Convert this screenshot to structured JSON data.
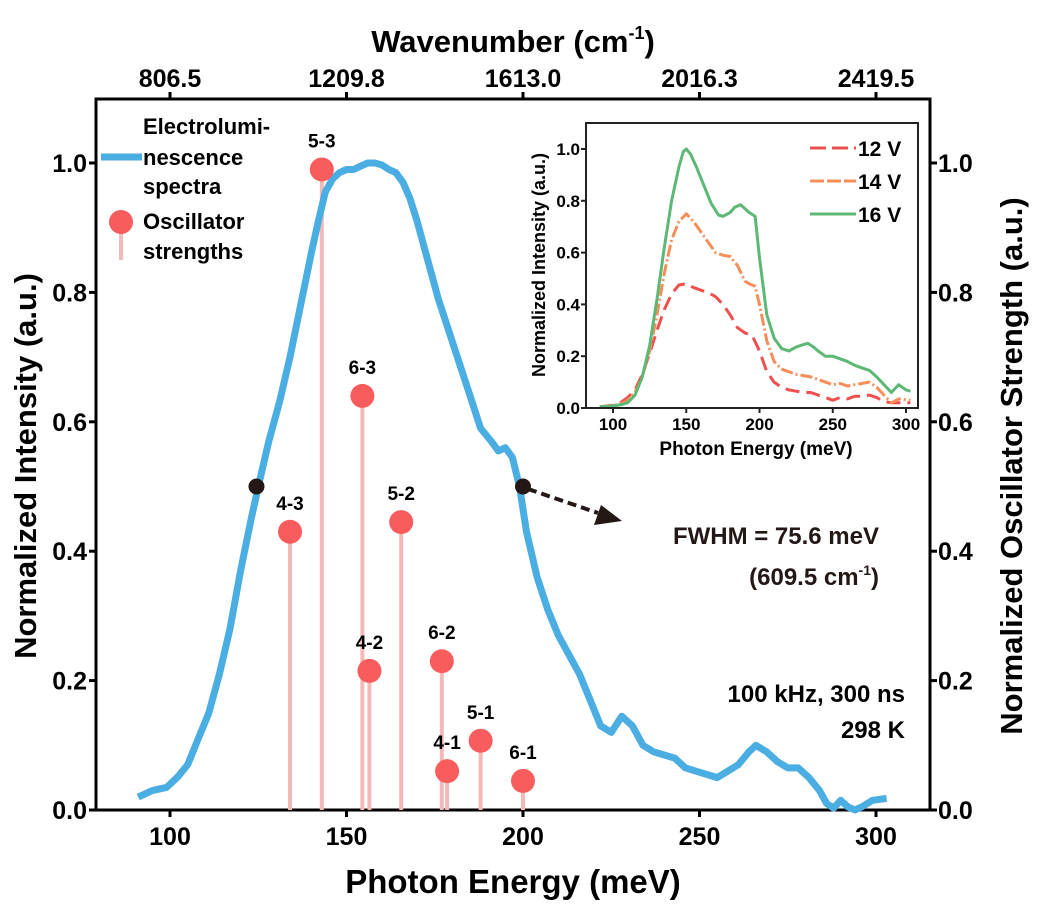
{
  "chart_data": [
    {
      "id": "main",
      "type": "line",
      "title": "",
      "xlabel": "Photon Energy (meV)",
      "ylabel_left": "Normalized Intensity (a.u.)",
      "ylabel_right": "Normalized Oscillator Strength (a.u.)",
      "top_xlabel": "Wavenumber (cm",
      "top_xlabel_sup": "-1",
      "top_xlabel_end": ")",
      "xlim": [
        79,
        315
      ],
      "ylim": [
        0,
        1.1
      ],
      "x_ticks": [
        100,
        150,
        200,
        250,
        300
      ],
      "x_tick_labels": [
        "100",
        "150",
        "200",
        "250",
        "300"
      ],
      "y_ticks": [
        0.0,
        0.2,
        0.4,
        0.6,
        0.8,
        1.0
      ],
      "y_tick_labels": [
        "0.0",
        "0.2",
        "0.4",
        "0.6",
        "0.8",
        "1.0"
      ],
      "top_ticks_meV": [
        100,
        150,
        200,
        250,
        300
      ],
      "top_tick_labels": [
        "806.5",
        "1209.8",
        "1613.0",
        "2016.3",
        "2419.5"
      ],
      "grid": false,
      "legend": {
        "placement": "top-left",
        "entries": [
          {
            "lines": [
              "Electrolumi-",
              "nescence",
              "spectra"
            ],
            "color": "#4BAEE3",
            "kind": "line"
          },
          {
            "lines": [
              "Oscillator",
              "strengths"
            ],
            "color": "#F85C5C",
            "kind": "stem"
          }
        ]
      },
      "series": [
        {
          "name": "Electroluminescence spectra",
          "color": "#4BAEE3",
          "x": [
            91,
            95,
            99,
            102,
            105,
            108,
            111,
            114,
            117,
            120,
            123,
            125,
            128,
            131,
            134,
            137,
            140,
            142,
            144,
            146,
            148,
            150,
            152,
            154,
            156,
            158,
            160,
            162,
            164,
            166,
            168,
            170,
            173,
            176,
            179,
            182,
            185,
            188,
            191,
            193,
            195,
            197,
            199,
            201,
            204,
            207,
            210,
            213,
            216,
            219,
            222,
            225,
            228,
            231,
            234,
            237,
            240,
            243,
            246,
            249,
            252,
            255,
            258,
            261,
            264,
            266,
            269,
            272,
            275,
            278,
            281,
            284,
            286,
            288,
            290,
            292,
            294,
            296,
            299,
            303
          ],
          "y": [
            0.02,
            0.03,
            0.035,
            0.05,
            0.07,
            0.11,
            0.15,
            0.21,
            0.28,
            0.37,
            0.45,
            0.5,
            0.57,
            0.63,
            0.7,
            0.78,
            0.86,
            0.91,
            0.955,
            0.975,
            0.985,
            0.99,
            0.99,
            0.995,
            1.0,
            1.0,
            0.997,
            0.99,
            0.985,
            0.97,
            0.945,
            0.91,
            0.85,
            0.79,
            0.74,
            0.69,
            0.64,
            0.59,
            0.57,
            0.555,
            0.56,
            0.545,
            0.5,
            0.43,
            0.36,
            0.31,
            0.27,
            0.24,
            0.21,
            0.17,
            0.13,
            0.12,
            0.145,
            0.13,
            0.1,
            0.09,
            0.085,
            0.08,
            0.065,
            0.06,
            0.055,
            0.05,
            0.06,
            0.07,
            0.09,
            0.1,
            0.09,
            0.075,
            0.065,
            0.065,
            0.05,
            0.03,
            0.01,
            0.003,
            0.015,
            0.005,
            0.0,
            0.005,
            0.015,
            0.018
          ]
        }
      ],
      "oscillators": [
        {
          "label": "4-3",
          "x": 134,
          "y": 0.43
        },
        {
          "label": "5-3",
          "x": 143,
          "y": 0.99
        },
        {
          "label": "6-3",
          "x": 154.5,
          "y": 0.64
        },
        {
          "label": "4-2",
          "x": 156.5,
          "y": 0.215
        },
        {
          "label": "5-2",
          "x": 165.5,
          "y": 0.445
        },
        {
          "label": "6-2",
          "x": 177,
          "y": 0.23
        },
        {
          "label": "4-1",
          "x": 178.5,
          "y": 0.06
        },
        {
          "label": "5-1",
          "x": 188,
          "y": 0.107
        },
        {
          "label": "6-1",
          "x": 200,
          "y": 0.045
        }
      ],
      "fwhm_points": [
        {
          "x": 124.5,
          "y": 0.5
        },
        {
          "x": 200,
          "y": 0.5
        }
      ],
      "annotations": {
        "fwhm_line1": "FWHM = 75.6 meV",
        "fwhm_line2_a": "(609.5 cm",
        "fwhm_line2_sup": "-1",
        "fwhm_line2_b": ")",
        "conditions_line1": "100 kHz, 300 ns",
        "conditions_line2": "298 K"
      }
    },
    {
      "id": "inset",
      "type": "line",
      "xlabel": "Photon Energy (meV)",
      "ylabel": "Normalized Intensity (a.u.)",
      "xlim": [
        82,
        307
      ],
      "ylim": [
        0,
        1.1
      ],
      "x_ticks": [
        100,
        150,
        200,
        250,
        300
      ],
      "x_tick_labels": [
        "100",
        "150",
        "200",
        "250",
        "300"
      ],
      "y_ticks": [
        0.0,
        0.2,
        0.4,
        0.6,
        0.8,
        1.0
      ],
      "y_tick_labels": [
        "0.0",
        "0.2",
        "0.4",
        "0.6",
        "0.8",
        "1.0"
      ],
      "grid": false,
      "legend": {
        "placement": "top-right"
      },
      "series": [
        {
          "name": "12 V",
          "color": "#EE4F4F",
          "dash": "long-dash",
          "x": [
            91,
            100,
            105,
            110,
            115,
            120,
            125,
            130,
            135,
            140,
            145,
            150,
            155,
            160,
            165,
            170,
            175,
            180,
            185,
            190,
            195,
            200,
            205,
            210,
            215,
            220,
            225,
            230,
            235,
            240,
            245,
            250,
            255,
            260,
            265,
            270,
            275,
            280,
            285,
            290,
            295,
            303
          ],
          "y": [
            0.005,
            0.01,
            0.02,
            0.04,
            0.07,
            0.13,
            0.21,
            0.3,
            0.38,
            0.44,
            0.475,
            0.48,
            0.465,
            0.455,
            0.445,
            0.43,
            0.4,
            0.36,
            0.31,
            0.29,
            0.28,
            0.22,
            0.14,
            0.1,
            0.08,
            0.07,
            0.065,
            0.06,
            0.06,
            0.05,
            0.04,
            0.03,
            0.04,
            0.035,
            0.045,
            0.045,
            0.05,
            0.04,
            0.025,
            0.02,
            0.02,
            0.02
          ]
        },
        {
          "name": "14 V",
          "color": "#F68E5A",
          "dash": "dash-dot",
          "x": [
            91,
            100,
            105,
            110,
            115,
            120,
            125,
            130,
            135,
            140,
            145,
            150,
            155,
            160,
            165,
            170,
            175,
            180,
            185,
            190,
            193,
            197,
            200,
            205,
            210,
            215,
            220,
            225,
            230,
            235,
            240,
            245,
            250,
            255,
            260,
            265,
            270,
            275,
            280,
            285,
            290,
            295,
            303
          ],
          "y": [
            0.005,
            0.01,
            0.015,
            0.03,
            0.06,
            0.12,
            0.22,
            0.36,
            0.52,
            0.65,
            0.72,
            0.75,
            0.72,
            0.68,
            0.64,
            0.6,
            0.59,
            0.585,
            0.55,
            0.49,
            0.48,
            0.47,
            0.4,
            0.26,
            0.18,
            0.15,
            0.14,
            0.13,
            0.125,
            0.12,
            0.11,
            0.1,
            0.09,
            0.095,
            0.085,
            0.09,
            0.095,
            0.1,
            0.08,
            0.05,
            0.02,
            0.035,
            0.03
          ]
        },
        {
          "name": "16 V",
          "color": "#5CB874",
          "dash": "solid",
          "x": [
            91,
            100,
            105,
            110,
            115,
            120,
            125,
            130,
            135,
            140,
            145,
            148,
            150,
            153,
            157,
            162,
            167,
            172,
            175,
            180,
            183,
            187,
            190,
            193,
            197,
            200,
            205,
            210,
            215,
            220,
            225,
            230,
            233,
            237,
            240,
            245,
            250,
            255,
            260,
            265,
            270,
            275,
            280,
            285,
            290,
            295,
            300,
            303
          ],
          "y": [
            0.005,
            0.008,
            0.012,
            0.02,
            0.05,
            0.12,
            0.24,
            0.42,
            0.62,
            0.8,
            0.93,
            0.99,
            1.0,
            0.98,
            0.93,
            0.86,
            0.79,
            0.745,
            0.74,
            0.755,
            0.775,
            0.785,
            0.77,
            0.755,
            0.74,
            0.58,
            0.36,
            0.27,
            0.23,
            0.22,
            0.235,
            0.245,
            0.25,
            0.235,
            0.22,
            0.2,
            0.2,
            0.19,
            0.18,
            0.165,
            0.155,
            0.145,
            0.12,
            0.09,
            0.06,
            0.09,
            0.07,
            0.065
          ]
        }
      ]
    }
  ]
}
